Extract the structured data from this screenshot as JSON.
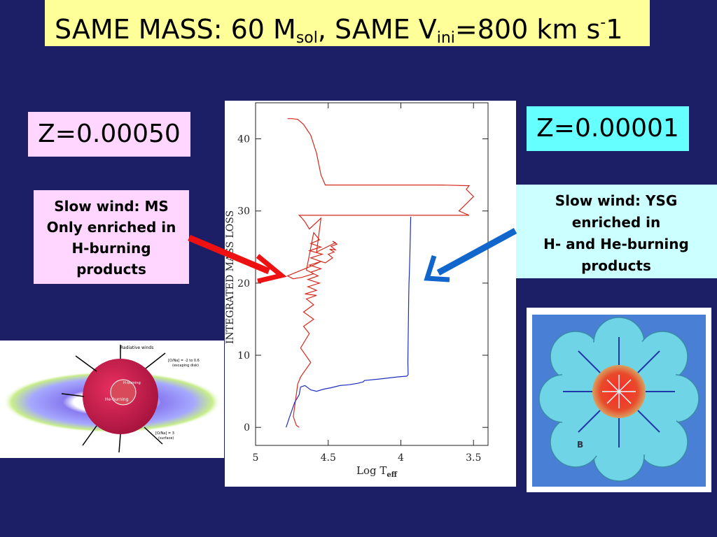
{
  "title": {
    "prefix": "SAME MASS: 60 M",
    "sub1": "sol",
    "middle": ", SAME V",
    "sub2": "ini",
    "suffix_a": "=800 km s",
    "sup": "-",
    "suffix_b": "1"
  },
  "left_panel": {
    "z_label": "Z=0.00050",
    "note_lines": [
      "Slow wind: MS",
      "Only enriched in",
      "H-burning",
      "products"
    ]
  },
  "right_panel": {
    "z_label": "Z=0.00001",
    "note_lines": [
      "Slow wind: YSG",
      "enriched in",
      "H- and He-burning",
      "products"
    ]
  },
  "illustration_left": {
    "labels": [
      "Radiative winds",
      "[O/Na] = -2 to 0.6",
      "(escaping disk)",
      "He-burning",
      "H-burning",
      "[O/Na] = 3",
      "(surface)"
    ]
  },
  "illustration_right": {
    "labels": [
      "B"
    ]
  },
  "colors": {
    "background": "#1c1f66",
    "title_bg": "#ffff99",
    "left_label_bg": "#ffd6ff",
    "right_z_bg": "#66ffff",
    "right_note_bg": "#ccffff",
    "red_series": "#d42a1e",
    "blue_series": "#1d2fbf",
    "red_arrow": "#ee1111",
    "blue_arrow": "#1166cc"
  },
  "chart_data": {
    "type": "line",
    "xlabel": "Log T",
    "xlabel_sub": "eff",
    "ylabel": "INTEGRATED MASS LOSS",
    "xlim": [
      5.0,
      3.4
    ],
    "ylim": [
      -2.5,
      45
    ],
    "x_reversed": true,
    "x_ticks": [
      5,
      4.5,
      4,
      3.5
    ],
    "x_tick_labels": [
      "5",
      "4.5",
      "4",
      "3.5"
    ],
    "y_ticks": [
      0,
      10,
      20,
      30,
      40
    ],
    "y_tick_labels": [
      "0",
      "10",
      "20",
      "30",
      "40"
    ],
    "series": [
      {
        "color": "red",
        "x": [
          4.7,
          4.72,
          4.74,
          4.73,
          4.72,
          4.71,
          4.69,
          4.62,
          4.69,
          4.63,
          4.67,
          4.6,
          4.67,
          4.6,
          4.65,
          4.58,
          4.66,
          4.58,
          4.64,
          4.56,
          4.64,
          4.57,
          4.62,
          4.55,
          4.63,
          4.55,
          4.62,
          4.54,
          4.63,
          4.55,
          4.62,
          4.56,
          4.6,
          4.65,
          4.6,
          4.68,
          4.74,
          4.78,
          4.72,
          4.66,
          4.6,
          4.55,
          4.52,
          4.47,
          4.5,
          4.46,
          4.49,
          4.45,
          4.48,
          4.44,
          4.47,
          4.45,
          4.58,
          4.55,
          4.63,
          4.66,
          4.68,
          4.7,
          3.53,
          3.6,
          3.55,
          3.5,
          3.55,
          3.53,
          3.72,
          4.52,
          4.55,
          4.58,
          4.62,
          4.67,
          4.71,
          4.75,
          4.78
        ],
        "y": [
          0,
          0.3,
          1.5,
          3,
          4.5,
          6,
          7,
          9,
          11,
          13,
          14,
          15,
          16,
          17,
          17.8,
          18.3,
          18.5,
          19,
          19.5,
          20,
          20.5,
          21,
          21.5,
          22,
          22.5,
          23,
          23.5,
          24,
          24.5,
          25,
          25.5,
          26,
          27,
          21.8,
          21.3,
          20.8,
          20.6,
          21,
          21.5,
          22,
          22.5,
          23,
          22.8,
          23.5,
          24,
          24.3,
          24.7,
          24.6,
          25.1,
          25.4,
          25.8,
          25.6,
          24.3,
          29,
          27.5,
          28.5,
          29,
          29.4,
          29.4,
          30,
          31,
          32,
          33,
          33.5,
          33.6,
          33.6,
          35,
          38,
          40.5,
          42,
          42.7,
          42.8,
          42.8
        ]
      },
      {
        "color": "blue",
        "x": [
          4.79,
          4.77,
          4.73,
          4.7,
          4.69,
          4.66,
          4.62,
          4.58,
          4.53,
          4.48,
          4.42,
          4.36,
          4.3,
          4.26,
          4.25,
          4.15,
          4.02,
          3.96,
          3.95,
          3.952,
          3.95,
          3.948,
          3.946,
          3.944,
          3.942,
          3.938,
          3.935,
          3.933,
          3.932
        ],
        "y": [
          0,
          1.2,
          3.5,
          4.5,
          5.6,
          5.8,
          5.2,
          5.0,
          5.3,
          5.5,
          5.8,
          5.9,
          6.1,
          6.3,
          6.5,
          6.7,
          7.0,
          7.1,
          7.3,
          9,
          12,
          15,
          18,
          20,
          21,
          24,
          26.5,
          28.5,
          29.2
        ]
      }
    ]
  }
}
